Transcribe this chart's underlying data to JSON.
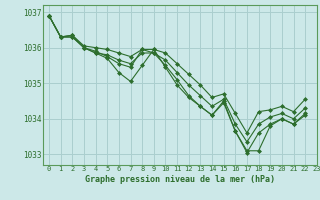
{
  "title": "Graphe pression niveau de la mer (hPa)",
  "background_color": "#cce8e8",
  "grid_color": "#aacece",
  "line_color": "#2d6e2d",
  "spine_color": "#5a9a5a",
  "xlim": [
    -0.5,
    23
  ],
  "ylim": [
    1032.7,
    1037.2
  ],
  "yticks": [
    1033,
    1034,
    1035,
    1036,
    1037
  ],
  "xticks": [
    0,
    1,
    2,
    3,
    4,
    5,
    6,
    7,
    8,
    9,
    10,
    11,
    12,
    13,
    14,
    15,
    16,
    17,
    18,
    19,
    20,
    21,
    22,
    23
  ],
  "series": [
    [
      1036.9,
      1036.3,
      1036.3,
      1036.0,
      1035.85,
      1035.7,
      1035.3,
      1035.05,
      1035.5,
      1035.95,
      1035.45,
      1034.95,
      1034.6,
      1034.35,
      1034.1,
      1034.5,
      1033.65,
      1033.1,
      1033.1,
      1033.8,
      1034.0,
      1033.85,
      1034.1
    ],
    [
      1036.9,
      1036.3,
      1036.3,
      1036.0,
      1035.9,
      1035.75,
      1035.55,
      1035.45,
      1035.95,
      1035.85,
      1035.5,
      1035.1,
      1034.65,
      1034.35,
      1034.1,
      1034.45,
      1033.65,
      1033.05,
      1033.6,
      1033.85,
      1034.0,
      1033.85,
      1034.15
    ],
    [
      1036.9,
      1036.3,
      1036.35,
      1036.0,
      1035.85,
      1035.8,
      1035.65,
      1035.55,
      1035.85,
      1035.85,
      1035.65,
      1035.3,
      1034.95,
      1034.65,
      1034.35,
      1034.55,
      1033.85,
      1033.35,
      1033.85,
      1034.05,
      1034.15,
      1034.0,
      1034.3
    ],
    [
      1036.9,
      1036.3,
      1036.35,
      1036.05,
      1036.0,
      1035.95,
      1035.85,
      1035.75,
      1035.95,
      1035.95,
      1035.85,
      1035.55,
      1035.25,
      1034.95,
      1034.6,
      1034.7,
      1034.15,
      1033.6,
      1034.2,
      1034.25,
      1034.35,
      1034.2,
      1034.55
    ]
  ]
}
